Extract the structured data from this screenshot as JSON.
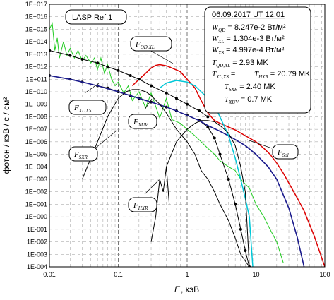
{
  "chart_data": {
    "type": "line",
    "x_scale": "log",
    "y_scale": "log",
    "xlim": [
      0.01,
      100
    ],
    "ylim": [
      0.0001,
      1e+17
    ],
    "xlabel_var": "E",
    "xlabel_unit": ",  кэВ",
    "ylabel": "фотон / кэВ / с / см²",
    "x_ticks": [
      "0.01",
      "0.1",
      "1",
      "10",
      "100"
    ],
    "y_ticks": [
      "1E-004",
      "1E-003",
      "1E-002",
      "1E-001",
      "1E+000",
      "1E+001",
      "1E+002",
      "1E+003",
      "1E+004",
      "1E+005",
      "1E+006",
      "1E+007",
      "1E+008",
      "1E+009",
      "1E+010",
      "1E+011",
      "1E+012",
      "1E+013",
      "1E+014",
      "1E+015",
      "1E+016",
      "1E+017"
    ],
    "grid": true,
    "legend_label": "LASP Ref.1",
    "info_box": {
      "date": "06.09.2017  UT 12:01",
      "rows": [
        {
          "var": "W",
          "sub": "QD",
          "text": " = 8.247e-2 Вт/м²"
        },
        {
          "var": "W",
          "sub": "XL",
          "text": " = 1.304e-3 Вт/м²"
        },
        {
          "var": "W",
          "sub": "XS",
          "text": " = 4.997e-4 Вт/м²"
        },
        {
          "var": "T",
          "sub": "QD,XL",
          "text": " =  2.93 MK"
        },
        {
          "var": "T",
          "sub": "XL,XS",
          "text": " = "
        },
        {
          "var": "T",
          "sub": "HXR",
          "text": " = 20.79 MK"
        },
        {
          "var": "T",
          "sub": "SXR",
          "text": " = 2.40 MK"
        },
        {
          "var": "T",
          "sub": "XUV",
          "text": " = 0.7 MK"
        }
      ]
    },
    "curve_labels": [
      {
        "var": "F",
        "sub": "QD,XL"
      },
      {
        "var": "F",
        "sub": "XL,XS"
      },
      {
        "var": "F",
        "sub": "XUV"
      },
      {
        "var": "F",
        "sub": "SXR"
      },
      {
        "var": "F",
        "sub": "HXR"
      },
      {
        "var": "F",
        "sub": "Sol"
      }
    ],
    "series": [
      {
        "key": "lasp",
        "color": "#22cc22",
        "x": [
          0.01,
          0.011,
          0.012,
          0.013,
          0.014,
          0.016,
          0.018,
          0.02,
          0.023,
          0.026,
          0.03,
          0.034,
          0.04,
          0.045,
          0.05,
          0.056,
          0.063,
          0.07,
          0.08,
          0.09,
          0.1,
          0.12,
          0.14,
          0.16,
          0.2,
          0.25,
          0.3,
          0.4,
          0.5,
          0.6,
          0.8,
          1,
          1.3,
          1.6,
          2,
          2.5,
          3,
          4,
          5,
          6,
          8,
          10,
          13,
          16,
          20,
          25
        ],
        "y": [
          1000000000000000.0,
          3000000000000000.0,
          20000000000000.0,
          200000000000000.0,
          5000000000000.0,
          100000000000000.0,
          8000000000000.0,
          30000000000000.0,
          5000000000000.0,
          20000000000000.0,
          3000000000000.0,
          8000000000000.0,
          2000000000000.0,
          5000000000000.0,
          600000000000.0,
          5000000000000.0,
          300000000000.0,
          1500000000000.0,
          100000000000.0,
          30000000000.0,
          60000000000.0,
          8000000000.0,
          30000000000.0,
          2000000000.0,
          10000000000.0,
          500000000.0,
          8000000000.0,
          80000000.0,
          3000000000.0,
          60000000.0,
          30000000.0,
          10000000.0,
          3000000.0,
          1000000.0,
          300000.0,
          100000.0,
          30000.0,
          10000.0,
          5000.0,
          1000.0,
          200.0,
          10,
          1,
          0.1,
          0.01,
          0.0002
        ]
      },
      {
        "key": "qdxl_red",
        "color": "#dd0000",
        "x": [
          0.16,
          0.2,
          0.25,
          0.3,
          0.35,
          0.4,
          0.5,
          0.6,
          0.8,
          1,
          1.3,
          1.6,
          2,
          2.5,
          3,
          4,
          5,
          6,
          8,
          10,
          13,
          16,
          20,
          25,
          30,
          40,
          50,
          70,
          100
        ],
        "y": [
          30000000000.0,
          100000000000.0,
          300000000000.0,
          800000000000.0,
          1300000000000.0,
          1500000000000.0,
          1200000000000.0,
          800000000000.0,
          400000000000.0,
          100000000000.0,
          20000000000.0,
          2000000000.0,
          200000000.0,
          50000000.0,
          30000000.0,
          15000000.0,
          9000000.0,
          5000000.0,
          2000000.0,
          1000000.0,
          300000.0,
          100000.0,
          20000.0,
          3000.0,
          500.0,
          30,
          3,
          0.03,
          0.0001
        ]
      },
      {
        "key": "qdxl_dark",
        "color": "#000000",
        "x": [
          0.01,
          0.02,
          0.03,
          0.05,
          0.07,
          0.1,
          0.15,
          0.2,
          0.3,
          0.5,
          0.7,
          1,
          1.5,
          2
        ],
        "y": [
          20000000000000.0,
          8000000000000.0,
          4000000000000.0,
          2000000000000.0,
          1000000000000.0,
          500000000000.0,
          200000000000.0,
          100000000000.0,
          30000000000.0,
          8000000000.0,
          3000000000.0,
          1000000000.0,
          300000000.0,
          100000000.0
        ]
      },
      {
        "key": "xlxs_dots",
        "color": "#000000",
        "x": [
          0.01,
          0.02,
          0.03,
          0.05,
          0.07,
          0.1,
          0.15,
          0.2,
          0.3,
          0.5,
          0.7,
          1,
          1.5,
          2,
          2.5,
          3,
          4,
          5,
          6,
          7,
          8
        ],
        "y": [
          200000000000.0,
          100000000000.0,
          60000000000.0,
          30000000000.0,
          20000000000.0,
          10000000000.0,
          5000000000.0,
          3000000000.0,
          1500000000.0,
          600000000.0,
          300000000.0,
          130000000.0,
          50000000.0,
          15000000.0,
          2000000.0,
          100000.0,
          1000.0,
          10.0,
          0.1,
          0.002,
          0.0001
        ]
      },
      {
        "key": "xlxs_blue",
        "color": "#1a1a8c",
        "x": [
          0.01,
          0.02,
          0.03,
          0.05,
          0.1,
          0.2,
          0.3,
          0.5,
          0.7,
          1,
          1.5,
          2,
          3,
          4,
          5,
          7,
          10,
          15,
          20,
          30,
          40,
          50
        ],
        "y": [
          200000000000.0,
          100000000000.0,
          60000000000.0,
          30000000000.0,
          10000000000.0,
          3000000000.0,
          1500000000.0,
          600000000.0,
          300000000.0,
          130000000.0,
          50000000.0,
          20000000.0,
          7000000.0,
          3000000.0,
          1500000.0,
          500000.0,
          100000.0,
          10000.0,
          1000.0,
          5,
          0.02,
          0.0001
        ]
      },
      {
        "key": "cyan",
        "color": "#00c8d8",
        "x": [
          0.4,
          0.5,
          0.7,
          1,
          1.3,
          1.6,
          2,
          2.5,
          3,
          4,
          5,
          6,
          7,
          8,
          9
        ],
        "y": [
          20000000000.0,
          50000000000.0,
          80000000000.0,
          60000000000.0,
          30000000000.0,
          10000000000.0,
          3000000000.0,
          800000000.0,
          100000000.0,
          3000000.0,
          50000.0,
          1000.0,
          30,
          1,
          0.0001
        ]
      },
      {
        "key": "xuv",
        "color": "#000000",
        "x": [
          0.03,
          0.05,
          0.07,
          0.1,
          0.13,
          0.16,
          0.2,
          0.25,
          0.3,
          0.4,
          0.5,
          0.7,
          1,
          1.3,
          1.6,
          2,
          2.5,
          3,
          4,
          5,
          6,
          8,
          10,
          13,
          16,
          20
        ],
        "y": [
          1000.0,
          1000000.0,
          100000000.0,
          3000000000.0,
          10000000000.0,
          15000000000.0,
          15000000000.0,
          10000000000.0,
          5000000000.0,
          1000000000.0,
          200000000.0,
          10000000.0,
          1000000.0,
          100000.0,
          5000.0,
          1000.0,
          100.0,
          10,
          0.5,
          0.02,
          0.001,
          0.0001,
          0.0001,
          0.0001,
          0.0001,
          0.0001
        ]
      },
      {
        "key": "sxr",
        "color": "#000000",
        "x": [
          0.5,
          0.7,
          1,
          1.3,
          1.6,
          2,
          2.5,
          3,
          4,
          5,
          6,
          7,
          8
        ],
        "y": [
          10000.0,
          1000000.0,
          10000000.0,
          30000000.0,
          50000000.0,
          50000000.0,
          40000000.0,
          20000000.0,
          5000000.0,
          500000.0,
          10000.0,
          100.0,
          0.0001
        ]
      },
      {
        "key": "hxr",
        "color": "#000000",
        "x": [
          0.3,
          0.35,
          0.4,
          0.45,
          0.5,
          0.55
        ],
        "y": [
          0.01,
          1,
          1000.0,
          100.0,
          10000.0,
          10.0
        ]
      }
    ]
  }
}
